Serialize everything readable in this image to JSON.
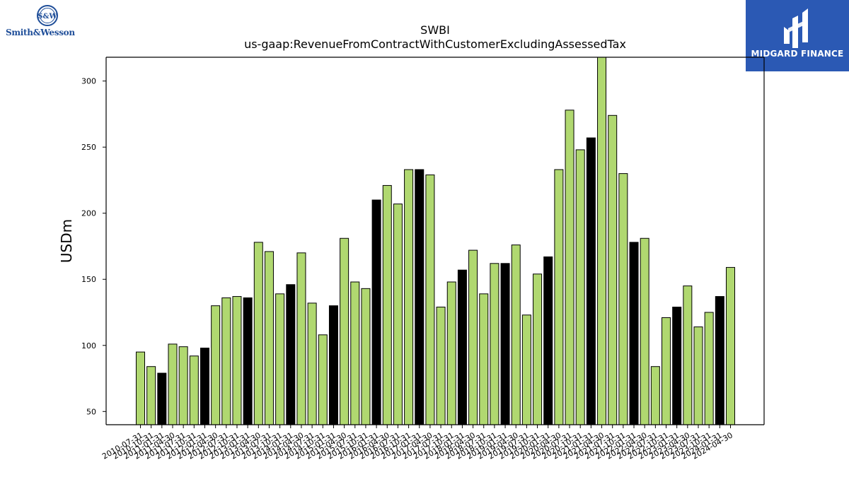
{
  "chart_data": {
    "type": "bar",
    "title": "SWBI",
    "subtitle": "us-gaap:RevenueFromContractWithCustomerExcludingAssessedTax",
    "ylabel": "USDm",
    "xlabel": "",
    "ylim": [
      40,
      318
    ],
    "yticks": [
      50,
      100,
      150,
      200,
      250,
      300
    ],
    "grid": false,
    "categories": [
      "2010-07-31",
      "2010-10-31",
      "2011-01-31",
      "2011-04-30",
      "2011-07-31",
      "2011-10-31",
      "2012-01-31",
      "2012-04-30",
      "2012-07-31",
      "2012-10-31",
      "2013-01-31",
      "2013-04-30",
      "2013-07-31",
      "2013-10-31",
      "2014-01-31",
      "2014-04-30",
      "2014-07-31",
      "2014-10-31",
      "2015-01-31",
      "2015-04-30",
      "2015-07-31",
      "2015-10-31",
      "2016-01-31",
      "2016-04-30",
      "2016-07-31",
      "2016-10-31",
      "2017-01-31",
      "2017-04-30",
      "2017-07-31",
      "2017-10-31",
      "2018-01-31",
      "2018-04-30",
      "2018-07-31",
      "2018-10-31",
      "2019-01-31",
      "2019-04-30",
      "2019-07-31",
      "2019-10-31",
      "2020-01-31",
      "2020-04-30",
      "2020-07-31",
      "2020-10-31",
      "2021-01-31",
      "2021-04-30",
      "2021-07-31",
      "2021-10-31",
      "2022-01-31",
      "2022-04-30",
      "2022-07-31",
      "2022-10-31",
      "2023-01-31",
      "2023-04-30",
      "2023-07-31",
      "2023-10-31",
      "2024-01-31",
      "2024-04-30"
    ],
    "values": [
      95,
      84,
      79,
      101,
      99,
      92,
      98,
      130,
      136,
      137,
      136,
      178,
      171,
      139,
      146,
      170,
      132,
      108,
      130,
      181,
      148,
      143,
      210,
      221,
      207,
      233,
      233,
      229,
      129,
      148,
      157,
      172,
      139,
      162,
      162,
      176,
      123,
      154,
      167,
      233,
      278,
      248,
      257,
      320,
      274,
      230,
      178,
      181,
      84,
      121,
      129,
      145,
      114,
      125,
      137,
      159
    ],
    "highlight_indices": [
      2,
      6,
      10,
      14,
      18,
      22,
      26,
      30,
      34,
      38,
      42,
      46,
      50,
      54
    ],
    "colors": {
      "bar": "#b0d870",
      "highlight": "#000000",
      "edge": "#000000"
    }
  },
  "logos": {
    "left_text": "Smith&Wesson",
    "right_text": "MIDGARD FINANCE"
  }
}
